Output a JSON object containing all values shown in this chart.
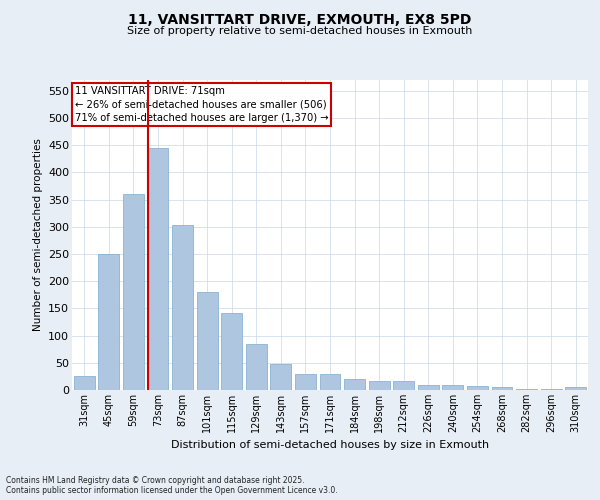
{
  "title": "11, VANSITTART DRIVE, EXMOUTH, EX8 5PD",
  "subtitle": "Size of property relative to semi-detached houses in Exmouth",
  "xlabel": "Distribution of semi-detached houses by size in Exmouth",
  "ylabel": "Number of semi-detached properties",
  "categories": [
    "31sqm",
    "45sqm",
    "59sqm",
    "73sqm",
    "87sqm",
    "101sqm",
    "115sqm",
    "129sqm",
    "143sqm",
    "157sqm",
    "171sqm",
    "184sqm",
    "198sqm",
    "212sqm",
    "226sqm",
    "240sqm",
    "254sqm",
    "268sqm",
    "282sqm",
    "296sqm",
    "310sqm"
  ],
  "values": [
    25,
    250,
    360,
    445,
    303,
    180,
    142,
    85,
    47,
    30,
    30,
    20,
    16,
    17,
    9,
    9,
    7,
    5,
    2,
    1,
    5
  ],
  "bar_color": "#aec6e0",
  "bar_edge_color": "#7aaace",
  "vline_color": "#cc0000",
  "annotation_title": "11 VANSITTART DRIVE: 71sqm",
  "annotation_line1": "← 26% of semi-detached houses are smaller (506)",
  "annotation_line2": "71% of semi-detached houses are larger (1,370) →",
  "annotation_box_color": "#cc0000",
  "ylim": [
    0,
    570
  ],
  "yticks": [
    0,
    50,
    100,
    150,
    200,
    250,
    300,
    350,
    400,
    450,
    500,
    550
  ],
  "footer_line1": "Contains HM Land Registry data © Crown copyright and database right 2025.",
  "footer_line2": "Contains public sector information licensed under the Open Government Licence v3.0.",
  "bg_color": "#e8eef5",
  "plot_bg_color": "#ffffff",
  "grid_color": "#c8d8e8"
}
